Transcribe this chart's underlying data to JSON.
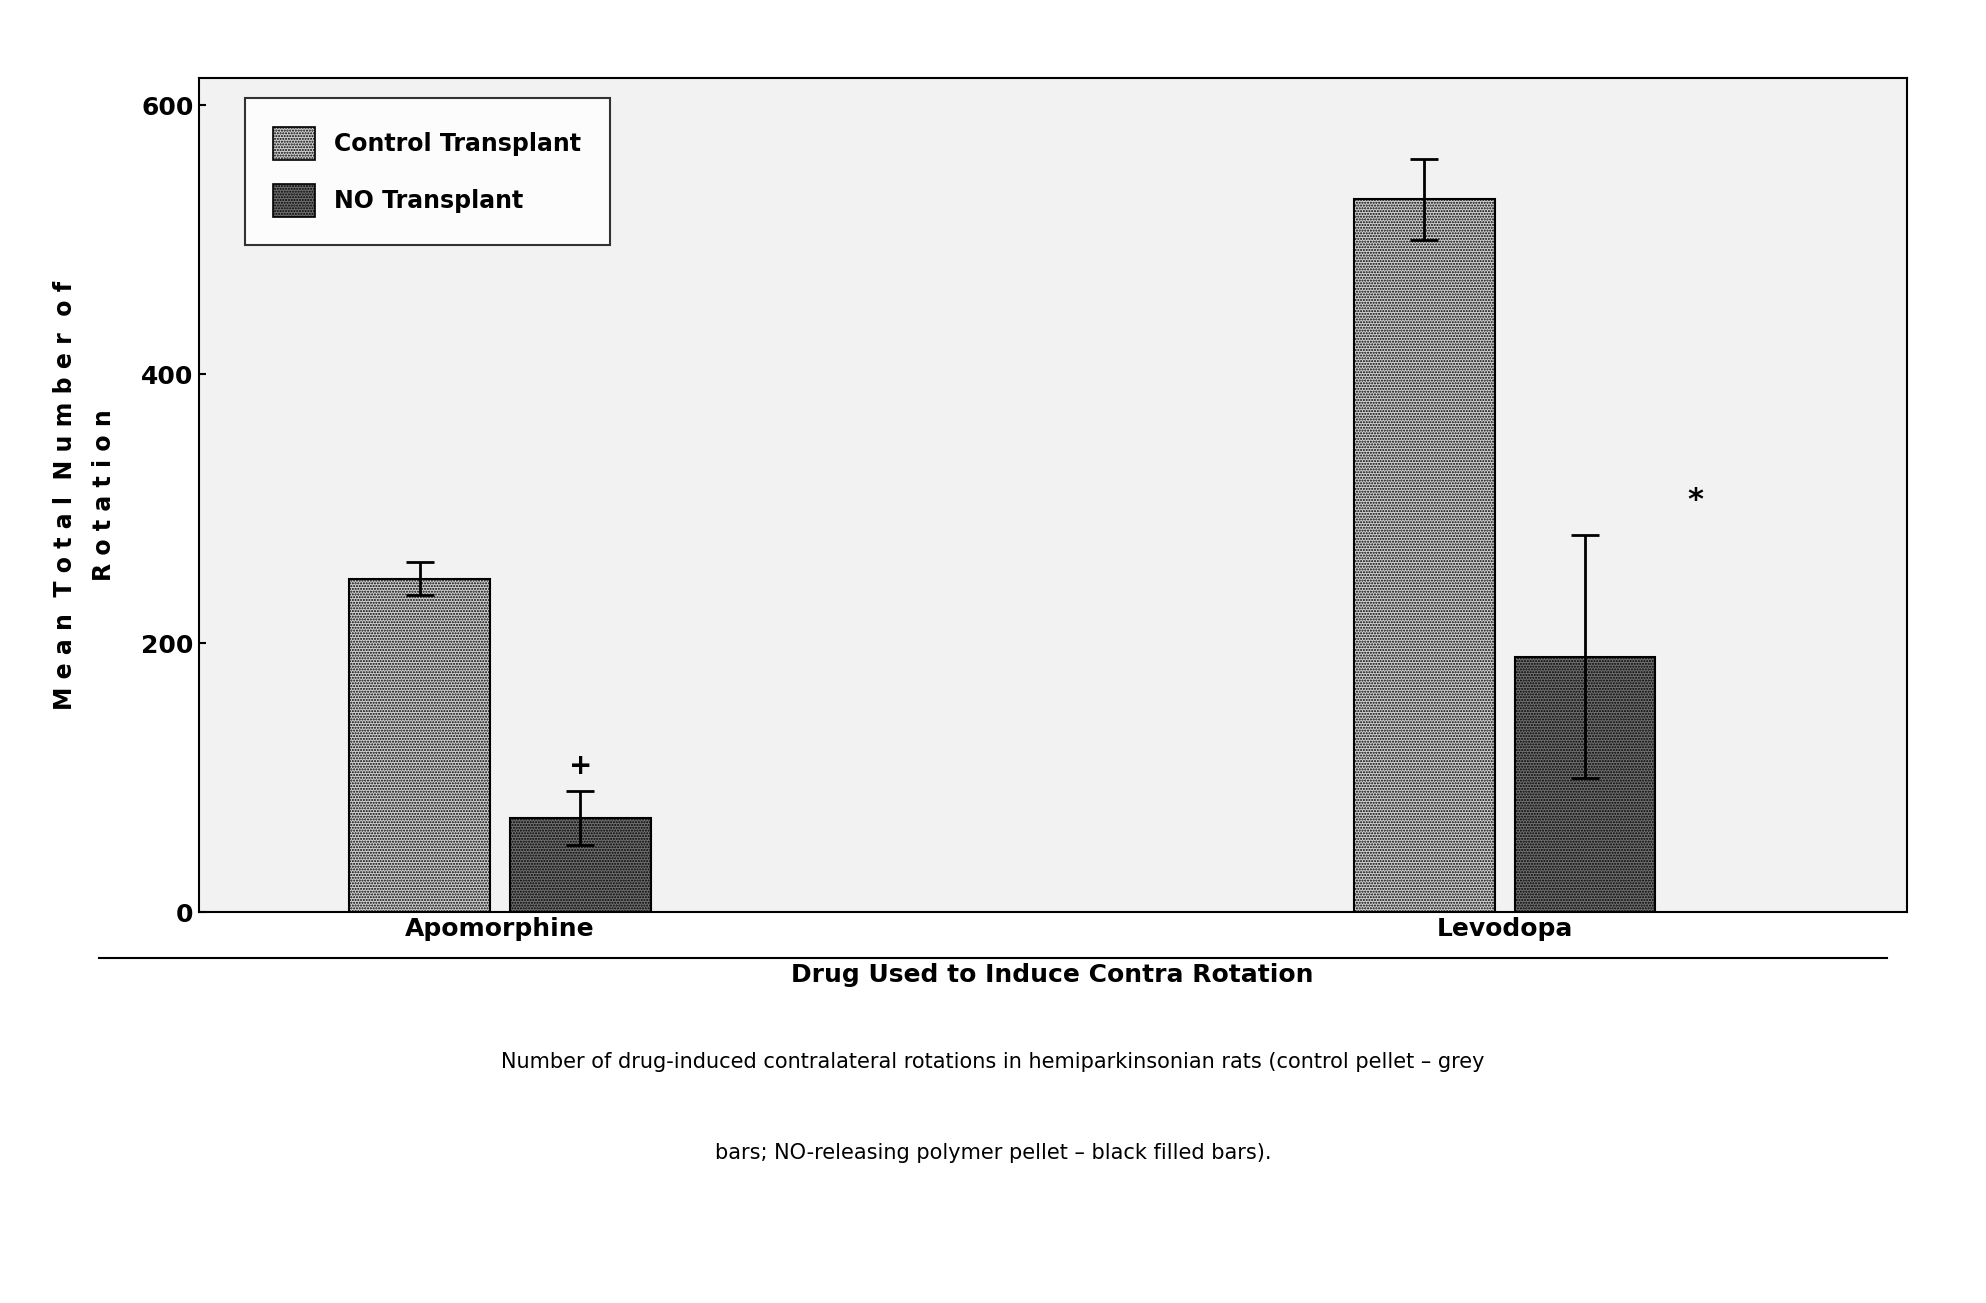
{
  "categories": [
    "Apomorphine",
    "Levodopa"
  ],
  "control_values": [
    248,
    530
  ],
  "no_values": [
    70,
    190
  ],
  "control_errors": [
    12,
    30
  ],
  "no_errors": [
    20,
    90
  ],
  "ylabel_letters": [
    "M",
    " ",
    "e",
    "a",
    "n",
    " ",
    "T",
    "o",
    "t",
    "a",
    "l",
    " ",
    "N",
    "u",
    "m",
    "b",
    "e",
    "r",
    " ",
    "o",
    "f",
    "\n",
    "R",
    "o",
    "t",
    "a",
    "t",
    "i",
    "o",
    "n"
  ],
  "ylabel": "M e a n  T o t a l  N u m b e r  o f\nR o t a t i o n",
  "xlabel": "Drug Used to Induce Contra Rotation",
  "ylim": [
    0,
    620
  ],
  "yticks": [
    0,
    200,
    400,
    600
  ],
  "legend_labels": [
    "Control Transplant",
    "NO Transplant"
  ],
  "caption_line1": "Number of drug-induced contralateral rotations in hemiparkinsonian rats (control pellet – grey",
  "caption_line2": "bars; NO-releasing polymer pellet – black filled bars).",
  "significance_apo": "+",
  "significance_levo": "*",
  "background_color": "#ffffff",
  "control_facecolor": "#d0d0d0",
  "no_facecolor": "#707070"
}
